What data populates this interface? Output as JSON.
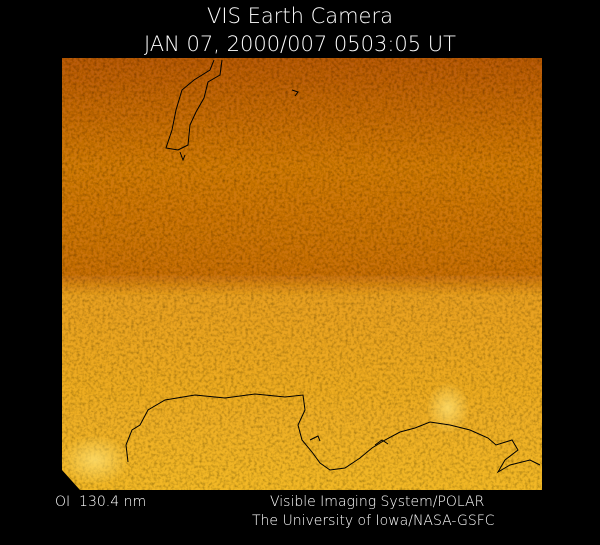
{
  "header": {
    "title": "VIS Earth Camera",
    "timestamp": "JAN 07, 2000/007 0503:05 UT"
  },
  "footer": {
    "wavelength": "OI  130.4 nm",
    "instrument": "Visible Imaging System/POLAR",
    "institution": "The University of Iowa/NASA-GSFC"
  }
}
